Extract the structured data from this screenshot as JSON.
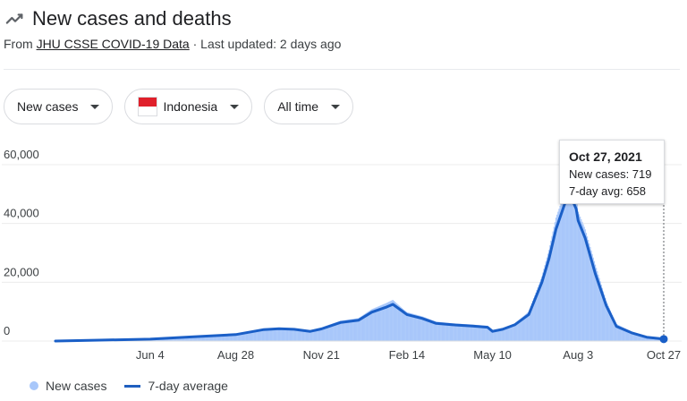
{
  "header": {
    "title": "New cases and deaths",
    "source_prefix": "From ",
    "source_link": "JHU CSSE COVID-19 Data",
    "source_suffix": " · Last updated: 2 days ago"
  },
  "filters": {
    "metric": "New cases",
    "location": "Indonesia",
    "range": "All time"
  },
  "tooltip": {
    "date": "Oct 27, 2021",
    "cases_text": "New cases: 719",
    "avg_text": "7-day avg: 658"
  },
  "legend": {
    "bars_label": "New cases",
    "line_label": "7-day average"
  },
  "colors": {
    "bars": "#a8c7fa",
    "line": "#1a5fc7",
    "grid": "#ececec"
  },
  "chart_data": {
    "type": "bar",
    "x_start": "2020-03-02",
    "x_end": "2021-10-27",
    "xticks": [
      {
        "label": "Jun 4",
        "date": "2020-06-04"
      },
      {
        "label": "Aug 28",
        "date": "2020-08-28"
      },
      {
        "label": "Nov 21",
        "date": "2020-11-21"
      },
      {
        "label": "Feb 14",
        "date": "2021-02-14"
      },
      {
        "label": "May 10",
        "date": "2021-05-10"
      },
      {
        "label": "Aug 3",
        "date": "2021-08-03"
      },
      {
        "label": "Oct 27",
        "date": "2021-10-27"
      }
    ],
    "yticks": [
      {
        "label": "0",
        "value": 0
      },
      {
        "label": "20,000",
        "value": 20000
      },
      {
        "label": "40,000",
        "value": 40000
      },
      {
        "label": "60,000",
        "value": 60000
      }
    ],
    "ylim": [
      0,
      60000
    ],
    "series": [
      {
        "name": "7-day average",
        "points": [
          [
            "2020-03-02",
            0
          ],
          [
            "2020-04-15",
            300
          ],
          [
            "2020-06-04",
            650
          ],
          [
            "2020-07-15",
            1400
          ],
          [
            "2020-08-28",
            2200
          ],
          [
            "2020-09-25",
            3900
          ],
          [
            "2020-10-10",
            4200
          ],
          [
            "2020-10-25",
            4000
          ],
          [
            "2020-11-10",
            3300
          ],
          [
            "2020-11-21",
            4100
          ],
          [
            "2020-12-10",
            6300
          ],
          [
            "2020-12-28",
            7100
          ],
          [
            "2021-01-10",
            9800
          ],
          [
            "2021-01-25",
            11600
          ],
          [
            "2021-01-31",
            12500
          ],
          [
            "2021-02-08",
            10500
          ],
          [
            "2021-02-14",
            9000
          ],
          [
            "2021-03-01",
            7700
          ],
          [
            "2021-03-15",
            6000
          ],
          [
            "2021-04-01",
            5500
          ],
          [
            "2021-04-20",
            5100
          ],
          [
            "2021-05-05",
            4700
          ],
          [
            "2021-05-10",
            3300
          ],
          [
            "2021-05-20",
            4000
          ],
          [
            "2021-06-01",
            5500
          ],
          [
            "2021-06-15",
            9000
          ],
          [
            "2021-06-28",
            20000
          ],
          [
            "2021-07-05",
            28000
          ],
          [
            "2021-07-12",
            38000
          ],
          [
            "2021-07-20",
            46000
          ],
          [
            "2021-07-25",
            50500
          ],
          [
            "2021-08-01",
            45000
          ],
          [
            "2021-08-03",
            41000
          ],
          [
            "2021-08-10",
            35000
          ],
          [
            "2021-08-20",
            23000
          ],
          [
            "2021-08-31",
            12000
          ],
          [
            "2021-09-10",
            5000
          ],
          [
            "2021-09-25",
            2800
          ],
          [
            "2021-10-10",
            1300
          ],
          [
            "2021-10-27",
            658
          ]
        ]
      },
      {
        "name": "New cases",
        "points": [
          [
            "2020-03-02",
            0
          ],
          [
            "2020-04-15",
            350
          ],
          [
            "2020-06-04",
            700
          ],
          [
            "2020-07-15",
            1500
          ],
          [
            "2020-08-28",
            2400
          ],
          [
            "2020-09-25",
            4300
          ],
          [
            "2020-10-10",
            4500
          ],
          [
            "2020-10-25",
            4200
          ],
          [
            "2020-11-10",
            3600
          ],
          [
            "2020-11-21",
            4600
          ],
          [
            "2020-12-10",
            6900
          ],
          [
            "2020-12-28",
            7800
          ],
          [
            "2021-01-10",
            10800
          ],
          [
            "2021-01-25",
            13000
          ],
          [
            "2021-01-31",
            14000
          ],
          [
            "2021-02-08",
            11500
          ],
          [
            "2021-02-14",
            9800
          ],
          [
            "2021-03-01",
            8400
          ],
          [
            "2021-03-15",
            6600
          ],
          [
            "2021-04-01",
            6000
          ],
          [
            "2021-04-20",
            5600
          ],
          [
            "2021-05-05",
            5200
          ],
          [
            "2021-05-10",
            3800
          ],
          [
            "2021-05-20",
            4400
          ],
          [
            "2021-06-01",
            6000
          ],
          [
            "2021-06-15",
            10000
          ],
          [
            "2021-06-28",
            22000
          ],
          [
            "2021-07-05",
            31000
          ],
          [
            "2021-07-12",
            42000
          ],
          [
            "2021-07-20",
            50000
          ],
          [
            "2021-07-25",
            55000
          ],
          [
            "2021-08-01",
            49000
          ],
          [
            "2021-08-03",
            44000
          ],
          [
            "2021-08-10",
            38000
          ],
          [
            "2021-08-20",
            26000
          ],
          [
            "2021-08-31",
            13500
          ],
          [
            "2021-09-10",
            5800
          ],
          [
            "2021-09-25",
            3200
          ],
          [
            "2021-10-10",
            1500
          ],
          [
            "2021-10-27",
            719
          ]
        ]
      }
    ]
  }
}
